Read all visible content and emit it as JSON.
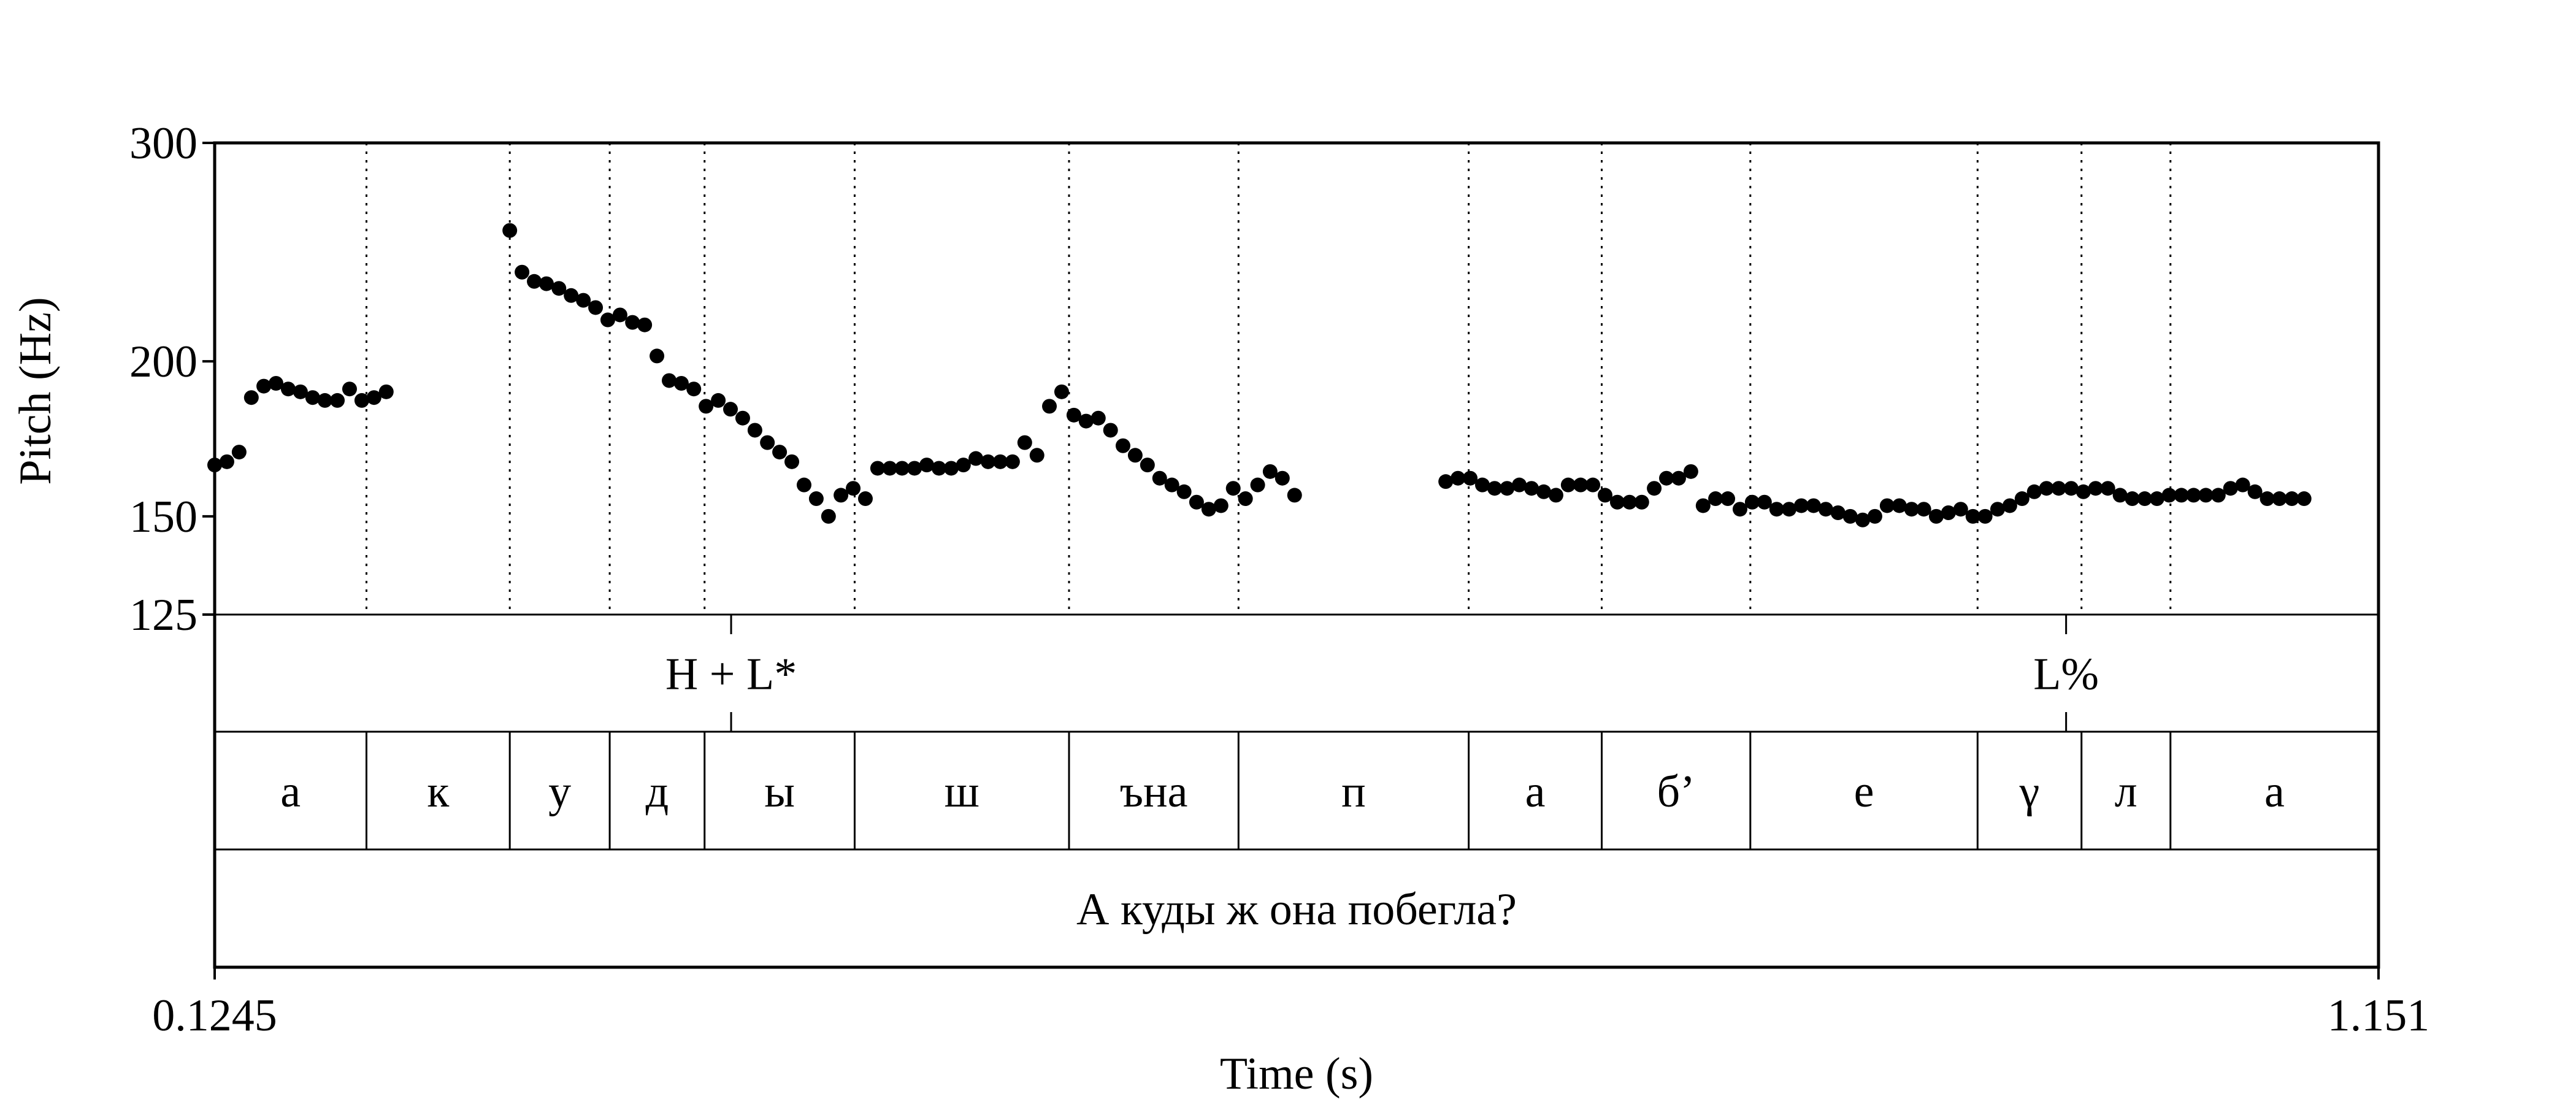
{
  "chart_data": {
    "type": "scatter",
    "xlabel": "Time (s)",
    "ylabel": "Pitch (Hz)",
    "xlim": [
      0.1245,
      1.151
    ],
    "ylim": [
      125,
      300
    ],
    "y_scale": "log",
    "y_ticks": [
      300,
      200,
      150,
      125
    ],
    "x_tick_labels": [
      "0.1245",
      "1.151"
    ],
    "series": [
      {
        "points": [
          [
            0.1245,
            165
          ],
          [
            0.1303,
            166
          ],
          [
            0.1361,
            169
          ],
          [
            0.1419,
            187
          ],
          [
            0.1478,
            191
          ],
          [
            0.1536,
            192
          ],
          [
            0.1594,
            190
          ],
          [
            0.1652,
            189
          ],
          [
            0.171,
            187
          ],
          [
            0.1768,
            186
          ],
          [
            0.1827,
            186
          ],
          [
            0.1885,
            190
          ],
          [
            0.1943,
            186
          ],
          [
            0.2001,
            187
          ],
          [
            0.2059,
            189
          ],
          [
            0.2645,
            255
          ],
          [
            0.2703,
            236
          ],
          [
            0.2761,
            232
          ],
          [
            0.2819,
            231
          ],
          [
            0.2878,
            229
          ],
          [
            0.2936,
            226
          ],
          [
            0.2994,
            224
          ],
          [
            0.3052,
            221
          ],
          [
            0.311,
            216
          ],
          [
            0.3168,
            218
          ],
          [
            0.3227,
            215
          ],
          [
            0.3285,
            214
          ],
          [
            0.3343,
            202
          ],
          [
            0.3401,
            193
          ],
          [
            0.3459,
            192
          ],
          [
            0.3518,
            190
          ],
          [
            0.3576,
            184
          ],
          [
            0.3634,
            186
          ],
          [
            0.3692,
            183
          ],
          [
            0.375,
            180
          ],
          [
            0.3808,
            176
          ],
          [
            0.3867,
            172
          ],
          [
            0.3925,
            169
          ],
          [
            0.3983,
            166
          ],
          [
            0.4041,
            159
          ],
          [
            0.4099,
            155
          ],
          [
            0.4157,
            150
          ],
          [
            0.4216,
            156
          ],
          [
            0.4274,
            158
          ],
          [
            0.4332,
            155
          ],
          [
            0.439,
            164
          ],
          [
            0.4448,
            164
          ],
          [
            0.4506,
            164
          ],
          [
            0.4565,
            164
          ],
          [
            0.4623,
            165
          ],
          [
            0.4681,
            164
          ],
          [
            0.4739,
            164
          ],
          [
            0.4797,
            165
          ],
          [
            0.4856,
            167
          ],
          [
            0.4914,
            166
          ],
          [
            0.4972,
            166
          ],
          [
            0.503,
            166
          ],
          [
            0.5088,
            172
          ],
          [
            0.5146,
            168
          ],
          [
            0.5205,
            184
          ],
          [
            0.5263,
            189
          ],
          [
            0.5321,
            181
          ],
          [
            0.5379,
            179
          ],
          [
            0.5437,
            180
          ],
          [
            0.5495,
            176
          ],
          [
            0.5554,
            171
          ],
          [
            0.5612,
            168
          ],
          [
            0.567,
            165
          ],
          [
            0.5728,
            161
          ],
          [
            0.5786,
            159
          ],
          [
            0.5844,
            157
          ],
          [
            0.5903,
            154
          ],
          [
            0.5961,
            152
          ],
          [
            0.6019,
            153
          ],
          [
            0.6077,
            158
          ],
          [
            0.6135,
            155
          ],
          [
            0.6193,
            159
          ],
          [
            0.6252,
            163
          ],
          [
            0.631,
            161
          ],
          [
            0.6368,
            156
          ],
          [
            0.7085,
            160
          ],
          [
            0.7143,
            161
          ],
          [
            0.7201,
            161
          ],
          [
            0.7259,
            159
          ],
          [
            0.7317,
            158
          ],
          [
            0.7376,
            158
          ],
          [
            0.7434,
            159
          ],
          [
            0.7492,
            158
          ],
          [
            0.755,
            157
          ],
          [
            0.7608,
            156
          ],
          [
            0.7666,
            159
          ],
          [
            0.7725,
            159
          ],
          [
            0.7783,
            159
          ],
          [
            0.7841,
            156
          ],
          [
            0.7899,
            154
          ],
          [
            0.7957,
            154
          ],
          [
            0.8015,
            154
          ],
          [
            0.8074,
            158
          ],
          [
            0.8132,
            161
          ],
          [
            0.819,
            161
          ],
          [
            0.8248,
            163
          ],
          [
            0.8306,
            153
          ],
          [
            0.8365,
            155
          ],
          [
            0.8423,
            155
          ],
          [
            0.8481,
            152
          ],
          [
            0.8539,
            154
          ],
          [
            0.8597,
            154
          ],
          [
            0.8655,
            152
          ],
          [
            0.8714,
            152
          ],
          [
            0.8772,
            153
          ],
          [
            0.883,
            153
          ],
          [
            0.8888,
            152
          ],
          [
            0.8946,
            151
          ],
          [
            0.9004,
            150
          ],
          [
            0.9063,
            149
          ],
          [
            0.9121,
            150
          ],
          [
            0.9179,
            153
          ],
          [
            0.9237,
            153
          ],
          [
            0.9295,
            152
          ],
          [
            0.9353,
            152
          ],
          [
            0.9412,
            150
          ],
          [
            0.947,
            151
          ],
          [
            0.9528,
            152
          ],
          [
            0.9586,
            150
          ],
          [
            0.9644,
            150
          ],
          [
            0.9703,
            152
          ],
          [
            0.9761,
            153
          ],
          [
            0.9819,
            155
          ],
          [
            0.9877,
            157
          ],
          [
            0.9935,
            158
          ],
          [
            0.9993,
            158
          ],
          [
            1.0052,
            158
          ],
          [
            1.011,
            157
          ],
          [
            1.0168,
            158
          ],
          [
            1.0226,
            158
          ],
          [
            1.0284,
            156
          ],
          [
            1.0342,
            155
          ],
          [
            1.0401,
            155
          ],
          [
            1.0459,
            155
          ],
          [
            1.0517,
            156
          ],
          [
            1.0575,
            156
          ],
          [
            1.0633,
            156
          ],
          [
            1.0691,
            156
          ],
          [
            1.075,
            156
          ],
          [
            1.0808,
            158
          ],
          [
            1.0866,
            159
          ],
          [
            1.0924,
            157
          ],
          [
            1.0982,
            155
          ],
          [
            1.104,
            155
          ],
          [
            1.1099,
            155
          ],
          [
            1.1157,
            155
          ]
        ]
      }
    ],
    "tiers": [
      {
        "labels": [
          {
            "time": 0.3695,
            "text": "H + L*"
          },
          {
            "time": 1.0028,
            "text": "L%"
          }
        ]
      },
      {
        "intervals": [
          {
            "start": 0.1245,
            "end": 0.1965,
            "text": "а"
          },
          {
            "start": 0.1965,
            "end": 0.2645,
            "text": "к"
          },
          {
            "start": 0.2645,
            "end": 0.3119,
            "text": "у"
          },
          {
            "start": 0.3119,
            "end": 0.3569,
            "text": "д"
          },
          {
            "start": 0.3569,
            "end": 0.4281,
            "text": "ы"
          },
          {
            "start": 0.4281,
            "end": 0.5298,
            "text": "ш"
          },
          {
            "start": 0.5298,
            "end": 0.6102,
            "text": "ъна"
          },
          {
            "start": 0.6102,
            "end": 0.7194,
            "text": "п"
          },
          {
            "start": 0.7194,
            "end": 0.7825,
            "text": "а"
          },
          {
            "start": 0.7825,
            "end": 0.853,
            "text": "б’"
          },
          {
            "start": 0.853,
            "end": 0.9608,
            "text": "е"
          },
          {
            "start": 0.9608,
            "end": 1.0101,
            "text": "γ"
          },
          {
            "start": 1.0101,
            "end": 1.0523,
            "text": "л"
          },
          {
            "start": 1.0523,
            "end": 1.151,
            "text": "а"
          }
        ]
      },
      {
        "intervals": [
          {
            "start": 0.1245,
            "end": 1.151,
            "text": "А куды ж она побегла?"
          }
        ]
      }
    ],
    "boundary_line_style": "dotted"
  }
}
